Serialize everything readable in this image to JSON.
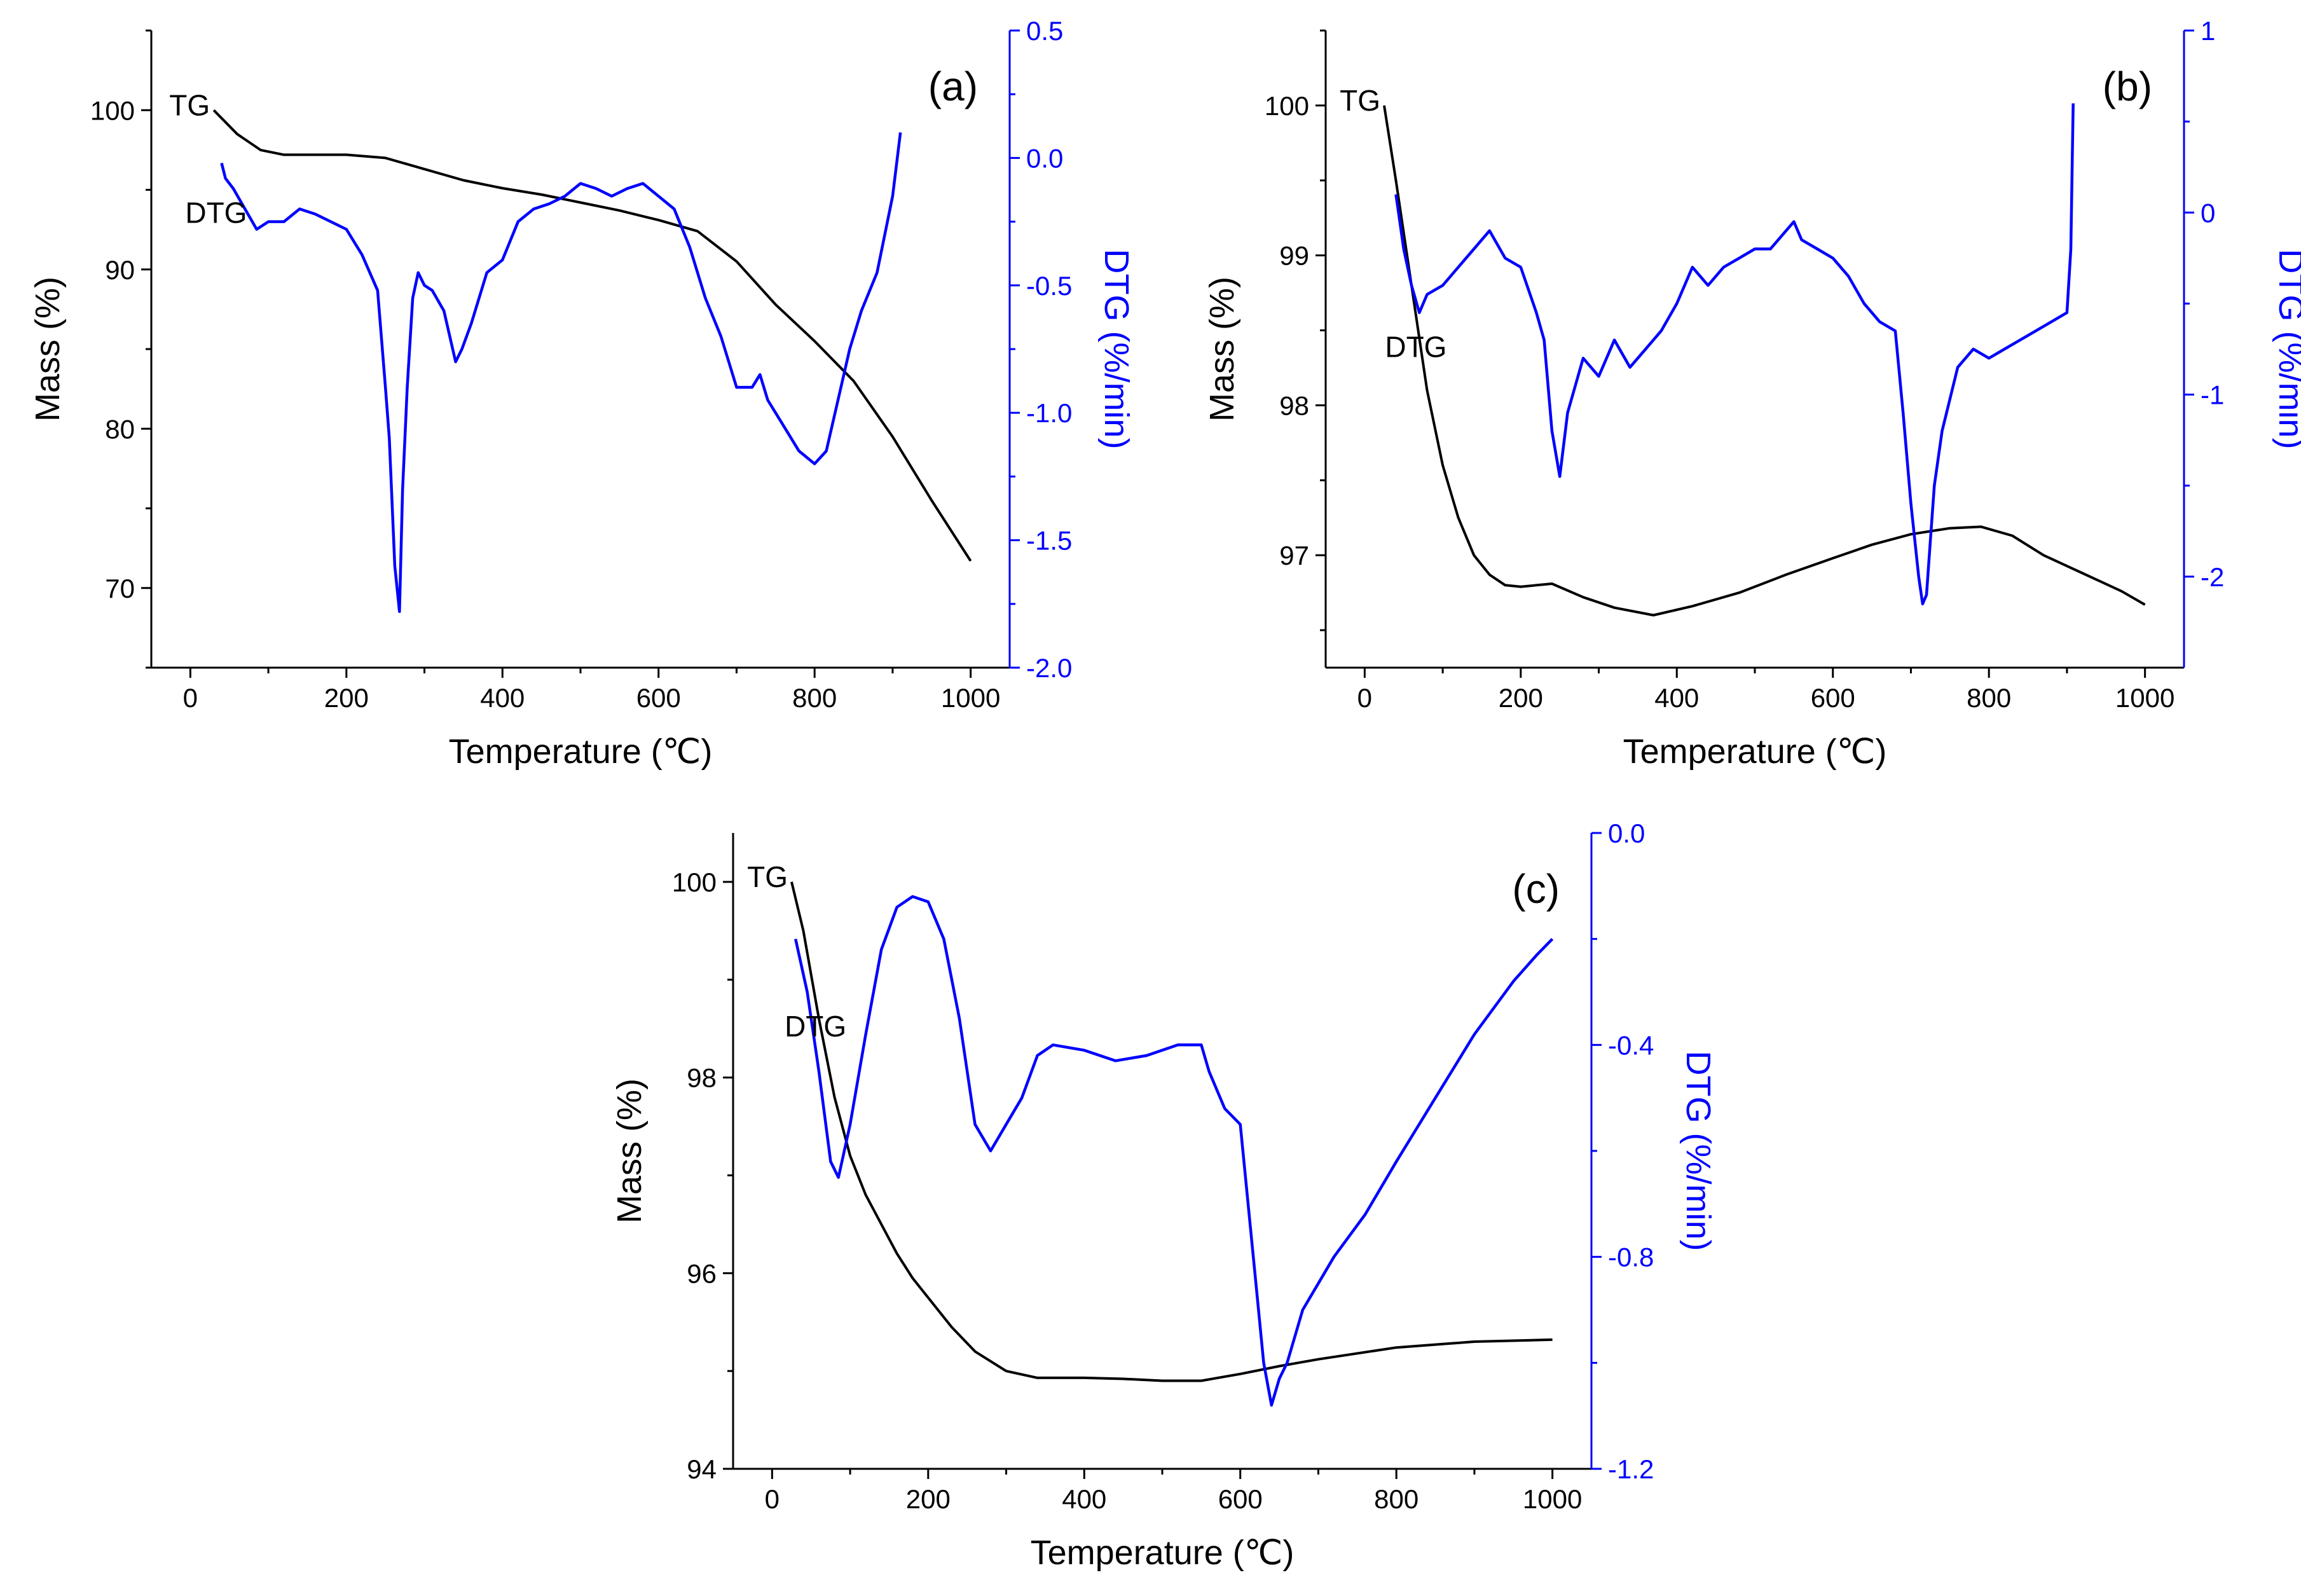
{
  "colors": {
    "tg": "#000000",
    "dtg": "#0000ff"
  },
  "chart_data": [
    {
      "panel": "(a)",
      "type": "line",
      "xlabel": "Temperature (℃)",
      "ylabel": "Mass (%)",
      "y2label": "DTG (%/min)",
      "xlim": [
        -50,
        1050
      ],
      "ylim": [
        65,
        105
      ],
      "y2lim": [
        -2.0,
        0.5
      ],
      "xticks": [
        0,
        200,
        400,
        600,
        800,
        1000
      ],
      "xtick_labels": [
        "0",
        "200",
        "400",
        "600",
        "800",
        "1000"
      ],
      "yticks": [
        70,
        80,
        90,
        100
      ],
      "ytick_labels": [
        "70",
        "80",
        "90",
        "100"
      ],
      "y2ticks": [
        -2.0,
        -1.5,
        -1.0,
        -0.5,
        0.0,
        0.5
      ],
      "y2tick_labels": [
        "-2.0",
        "-1.5",
        "-1.0",
        "-0.5",
        "0.0",
        "0.5"
      ],
      "tg_label": "TG",
      "dtg_label": "DTG",
      "series": [
        {
          "name": "TG",
          "axis": "left",
          "color": "#000000",
          "x": [
            30,
            60,
            90,
            120,
            150,
            200,
            250,
            300,
            350,
            400,
            450,
            500,
            550,
            600,
            650,
            700,
            750,
            800,
            850,
            900,
            950,
            1000
          ],
          "values": [
            100,
            98.5,
            97.5,
            97.2,
            97.2,
            97.2,
            97.0,
            96.3,
            95.6,
            95.1,
            94.7,
            94.2,
            93.7,
            93.1,
            92.4,
            90.5,
            87.8,
            85.5,
            83.0,
            79.5,
            75.5,
            71.7
          ]
        },
        {
          "name": "DTG",
          "axis": "right",
          "color": "#0000ff",
          "x": [
            40,
            45,
            55,
            70,
            85,
            100,
            120,
            140,
            160,
            180,
            200,
            220,
            240,
            250,
            255,
            262,
            268,
            272,
            278,
            285,
            292,
            300,
            310,
            325,
            340,
            348,
            360,
            380,
            400,
            420,
            440,
            460,
            480,
            500,
            520,
            540,
            560,
            580,
            600,
            620,
            640,
            660,
            680,
            700,
            720,
            730,
            740,
            760,
            780,
            800,
            815,
            830,
            845,
            860,
            880,
            900,
            910
          ],
          "values": [
            -0.02,
            -0.08,
            -0.12,
            -0.2,
            -0.28,
            -0.25,
            -0.25,
            -0.2,
            -0.22,
            -0.25,
            -0.28,
            -0.38,
            -0.52,
            -0.9,
            -1.1,
            -1.6,
            -1.78,
            -1.3,
            -0.9,
            -0.55,
            -0.45,
            -0.5,
            -0.52,
            -0.6,
            -0.8,
            -0.75,
            -0.65,
            -0.45,
            -0.4,
            -0.25,
            -0.2,
            -0.18,
            -0.15,
            -0.1,
            -0.12,
            -0.15,
            -0.12,
            -0.1,
            -0.15,
            -0.2,
            -0.35,
            -0.55,
            -0.7,
            -0.9,
            -0.9,
            -0.85,
            -0.95,
            -1.05,
            -1.15,
            -1.2,
            -1.15,
            -0.95,
            -0.75,
            -0.6,
            -0.45,
            -0.15,
            0.1
          ]
        }
      ]
    },
    {
      "panel": "(b)",
      "type": "line",
      "xlabel": "Temperature (℃)",
      "ylabel": "Mass (%)",
      "y2label": "DTG (%/min)",
      "xlim": [
        -50,
        1050
      ],
      "ylim": [
        96.25,
        100.5
      ],
      "y2lim": [
        -2.5,
        1.0
      ],
      "xticks": [
        0,
        200,
        400,
        600,
        800,
        1000
      ],
      "xtick_labels": [
        "0",
        "200",
        "400",
        "600",
        "800",
        "1000"
      ],
      "yticks": [
        97,
        98,
        99,
        100
      ],
      "ytick_labels": [
        "97",
        "98",
        "99",
        "100"
      ],
      "y2ticks": [
        -2,
        -1,
        0,
        1
      ],
      "y2tick_labels": [
        "-2",
        "-1",
        "0",
        "1"
      ],
      "tg_label": "TG",
      "dtg_label": "DTG",
      "series": [
        {
          "name": "TG",
          "axis": "left",
          "color": "#000000",
          "x": [
            25,
            40,
            60,
            80,
            100,
            120,
            140,
            160,
            180,
            200,
            240,
            280,
            320,
            370,
            420,
            480,
            540,
            600,
            650,
            700,
            750,
            790,
            830,
            870,
            920,
            970,
            1000
          ],
          "values": [
            100,
            99.5,
            98.8,
            98.1,
            97.6,
            97.25,
            97.0,
            96.87,
            96.8,
            96.79,
            96.81,
            96.72,
            96.65,
            96.6,
            96.66,
            96.75,
            96.87,
            96.98,
            97.07,
            97.14,
            97.18,
            97.19,
            97.13,
            97.0,
            96.88,
            96.76,
            96.67
          ]
        },
        {
          "name": "DTG",
          "axis": "right",
          "color": "#0000ff",
          "x": [
            40,
            50,
            60,
            70,
            80,
            100,
            120,
            140,
            160,
            180,
            200,
            220,
            230,
            240,
            250,
            260,
            280,
            300,
            320,
            340,
            360,
            380,
            400,
            420,
            440,
            460,
            480,
            500,
            520,
            540,
            550,
            560,
            580,
            600,
            620,
            640,
            660,
            680,
            690,
            700,
            710,
            715,
            720,
            725,
            730,
            740,
            760,
            780,
            800,
            820,
            840,
            860,
            880,
            900,
            905,
            908
          ],
          "values": [
            0.1,
            -0.2,
            -0.4,
            -0.55,
            -0.45,
            -0.4,
            -0.3,
            -0.2,
            -0.1,
            -0.25,
            -0.3,
            -0.55,
            -0.7,
            -1.2,
            -1.45,
            -1.1,
            -0.8,
            -0.9,
            -0.7,
            -0.85,
            -0.75,
            -0.65,
            -0.5,
            -0.3,
            -0.4,
            -0.3,
            -0.25,
            -0.2,
            -0.2,
            -0.1,
            -0.05,
            -0.15,
            -0.2,
            -0.25,
            -0.35,
            -0.5,
            -0.6,
            -0.65,
            -1.1,
            -1.6,
            -2.0,
            -2.15,
            -2.1,
            -1.8,
            -1.5,
            -1.2,
            -0.85,
            -0.75,
            -0.8,
            -0.75,
            -0.7,
            -0.65,
            -0.6,
            -0.55,
            -0.2,
            0.6
          ]
        }
      ]
    },
    {
      "panel": "(c)",
      "type": "line",
      "xlabel": "Temperature (℃)",
      "ylabel": "Mass (%)",
      "y2label": "DTG (%/min)",
      "xlim": [
        -50,
        1050
      ],
      "ylim": [
        94,
        100.5
      ],
      "y2lim": [
        -1.2,
        0.0
      ],
      "xticks": [
        0,
        200,
        400,
        600,
        800,
        1000
      ],
      "xtick_labels": [
        "0",
        "200",
        "400",
        "600",
        "800",
        "1000"
      ],
      "yticks": [
        94,
        96,
        98,
        100
      ],
      "ytick_labels": [
        "94",
        "96",
        "98",
        "100"
      ],
      "y2ticks": [
        -1.2,
        -0.8,
        -0.4,
        0.0
      ],
      "y2tick_labels": [
        "-1.2",
        "-0.8",
        "-0.4",
        "0.0"
      ],
      "tg_label": "TG",
      "dtg_label": "DTG",
      "series": [
        {
          "name": "TG",
          "axis": "left",
          "color": "#000000",
          "x": [
            25,
            40,
            60,
            80,
            100,
            120,
            140,
            160,
            180,
            200,
            230,
            260,
            300,
            340,
            400,
            450,
            500,
            550,
            600,
            650,
            700,
            800,
            900,
            1000
          ],
          "values": [
            100,
            99.5,
            98.6,
            97.8,
            97.2,
            96.8,
            96.5,
            96.2,
            95.95,
            95.75,
            95.45,
            95.2,
            95.0,
            94.93,
            94.93,
            94.92,
            94.9,
            94.9,
            94.97,
            95.05,
            95.12,
            95.24,
            95.3,
            95.32
          ]
        },
        {
          "name": "DTG",
          "axis": "right",
          "color": "#0000ff",
          "x": [
            30,
            45,
            60,
            75,
            85,
            100,
            120,
            140,
            160,
            180,
            200,
            220,
            240,
            260,
            280,
            300,
            320,
            340,
            360,
            400,
            440,
            480,
            520,
            550,
            560,
            580,
            600,
            620,
            630,
            640,
            650,
            660,
            680,
            700,
            720,
            760,
            800,
            850,
            900,
            950,
            980,
            1000
          ],
          "values": [
            -0.2,
            -0.3,
            -0.45,
            -0.62,
            -0.65,
            -0.55,
            -0.38,
            -0.22,
            -0.14,
            -0.12,
            -0.13,
            -0.2,
            -0.35,
            -0.55,
            -0.6,
            -0.55,
            -0.5,
            -0.42,
            -0.4,
            -0.41,
            -0.43,
            -0.42,
            -0.4,
            -0.4,
            -0.45,
            -0.52,
            -0.55,
            -0.85,
            -1.0,
            -1.08,
            -1.03,
            -1.0,
            -0.9,
            -0.85,
            -0.8,
            -0.72,
            -0.62,
            -0.5,
            -0.38,
            -0.28,
            -0.23,
            -0.2
          ]
        }
      ]
    }
  ]
}
